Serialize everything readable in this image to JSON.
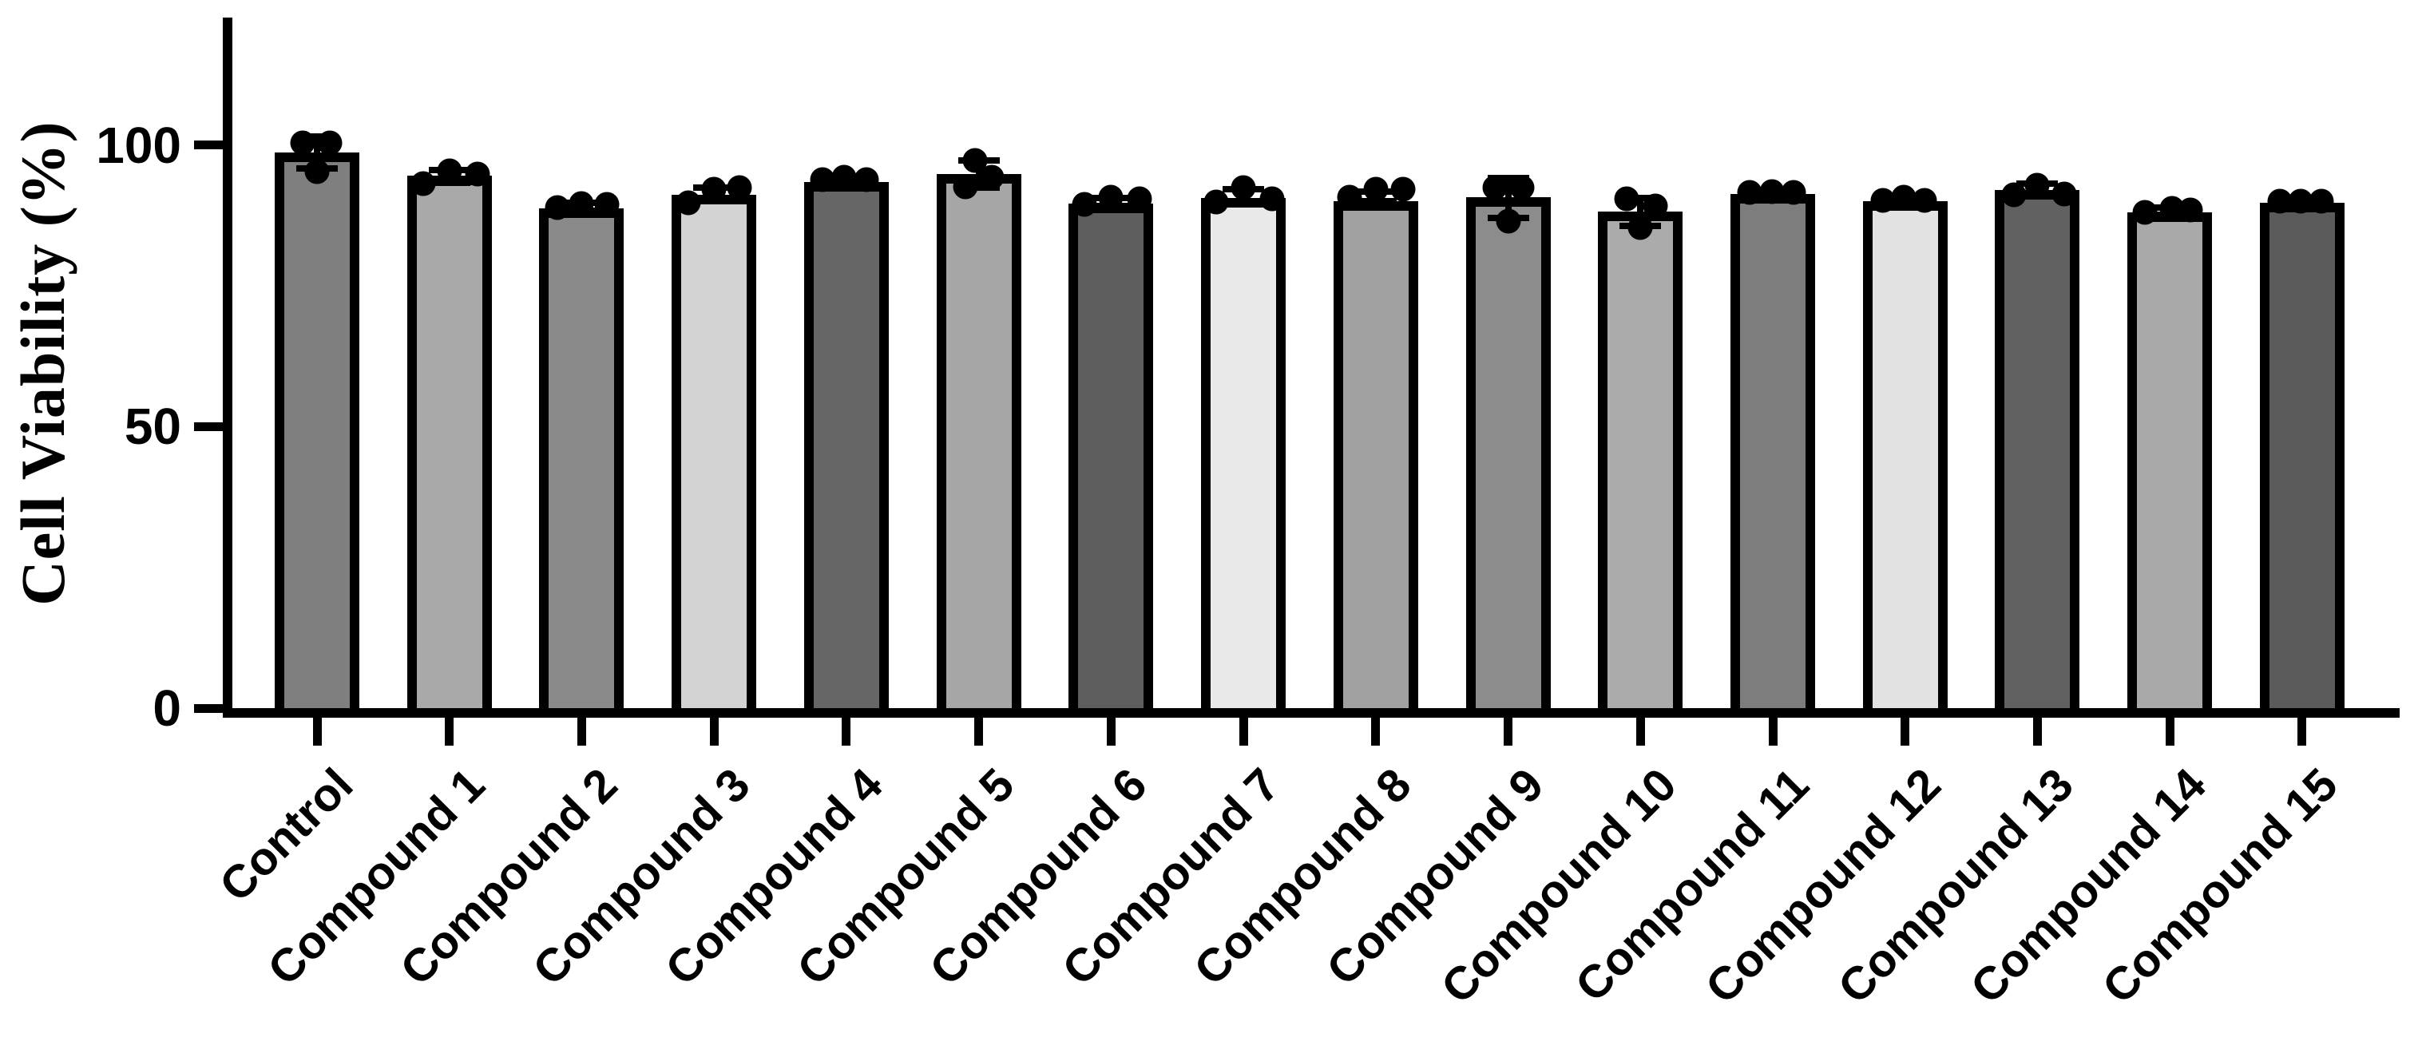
{
  "chart_data": {
    "type": "bar",
    "title": "",
    "xlabel": "",
    "ylabel": "Cell Viability (%)",
    "ylim": [
      0,
      122
    ],
    "grid": false,
    "legend": null,
    "background": "#ffffff",
    "axis_color": "#000000",
    "bar_border_color": "#000000",
    "point_color": "#000000",
    "yticks": [
      {
        "value": 0,
        "label": "0"
      },
      {
        "value": 50,
        "label": "50"
      },
      {
        "value": 100,
        "label": "100"
      }
    ],
    "categories": [
      "Control",
      "Compound 1",
      "Compound 2",
      "Compound 3",
      "Compound 4",
      "Compound 5",
      "Compound 6",
      "Compound 7",
      "Compound 8",
      "Compound 9",
      "Compound 10",
      "Compound 11",
      "Compound 12",
      "Compound 13",
      "Compound 14",
      "Compound 15"
    ],
    "bar_colors": [
      "#7f7f7f",
      "#a9a9a9",
      "#8a8a8a",
      "#d3d3d3",
      "#666666",
      "#a6a6a6",
      "#5e5e5e",
      "#e9e9e9",
      "#a1a1a1",
      "#8c8c8c",
      "#ababab",
      "#7d7d7d",
      "#e2e2e2",
      "#616161",
      "#a9a9a9",
      "#5b5b5b"
    ],
    "series": [
      {
        "name": "Cell Viability (%)",
        "values": [
          98.7,
          94.6,
          88.7,
          91.1,
          93.5,
          94.9,
          89.6,
          90.6,
          90.1,
          90.8,
          88.2,
          91.3,
          90.0,
          92.0,
          88.0,
          89.8
        ],
        "error_low": [
          95.8,
          93.3,
          88.4,
          90.2,
          93.1,
          92.5,
          89.2,
          89.9,
          90.0,
          87.1,
          85.7,
          91.0,
          89.5,
          91.4,
          87.6,
          89.5
        ],
        "error_high": [
          101.5,
          95.6,
          89.7,
          92.5,
          94.4,
          97.2,
          90.6,
          92.2,
          91.8,
          94.2,
          90.6,
          91.9,
          90.8,
          93.2,
          88.9,
          90.3
        ]
      }
    ],
    "replicate_points": [
      [
        100.4,
        100.4,
        95.3
      ],
      [
        93.2,
        95.4,
        94.9
      ],
      [
        88.9,
        89.6,
        89.4
      ],
      [
        89.8,
        92.2,
        92.4
      ],
      [
        93.9,
        94.3,
        93.9
      ],
      [
        92.6,
        97.2,
        94.3
      ],
      [
        89.4,
        90.8,
        90.4
      ],
      [
        89.9,
        92.5,
        90.4
      ],
      [
        90.8,
        92.2,
        92.2
      ],
      [
        92.5,
        92.5,
        86.5
      ],
      [
        90.4,
        89.2,
        85.4
      ],
      [
        91.6,
        91.8,
        91.6
      ],
      [
        90.2,
        90.7,
        90.2
      ],
      [
        91.1,
        92.9,
        91.3
      ],
      [
        88.1,
        88.7,
        88.5
      ],
      [
        90.0,
        90.1,
        90.0
      ]
    ],
    "replicate_point_x_offsets": [
      [
        -18,
        16,
        0
      ],
      [
        -33,
        0,
        35
      ],
      [
        -30,
        0,
        32
      ],
      [
        -32,
        0,
        32
      ],
      [
        -30,
        -3,
        25
      ],
      [
        -17,
        -5,
        16
      ],
      [
        -33,
        0,
        36
      ],
      [
        -34,
        0,
        36
      ],
      [
        -33,
        0,
        34
      ],
      [
        -17,
        17,
        0
      ],
      [
        -17,
        19,
        0
      ],
      [
        -29,
        -1,
        26
      ],
      [
        -28,
        -2,
        24
      ],
      [
        -29,
        0,
        34
      ],
      [
        -31,
        3,
        26
      ],
      [
        -28,
        -2,
        24
      ]
    ]
  }
}
